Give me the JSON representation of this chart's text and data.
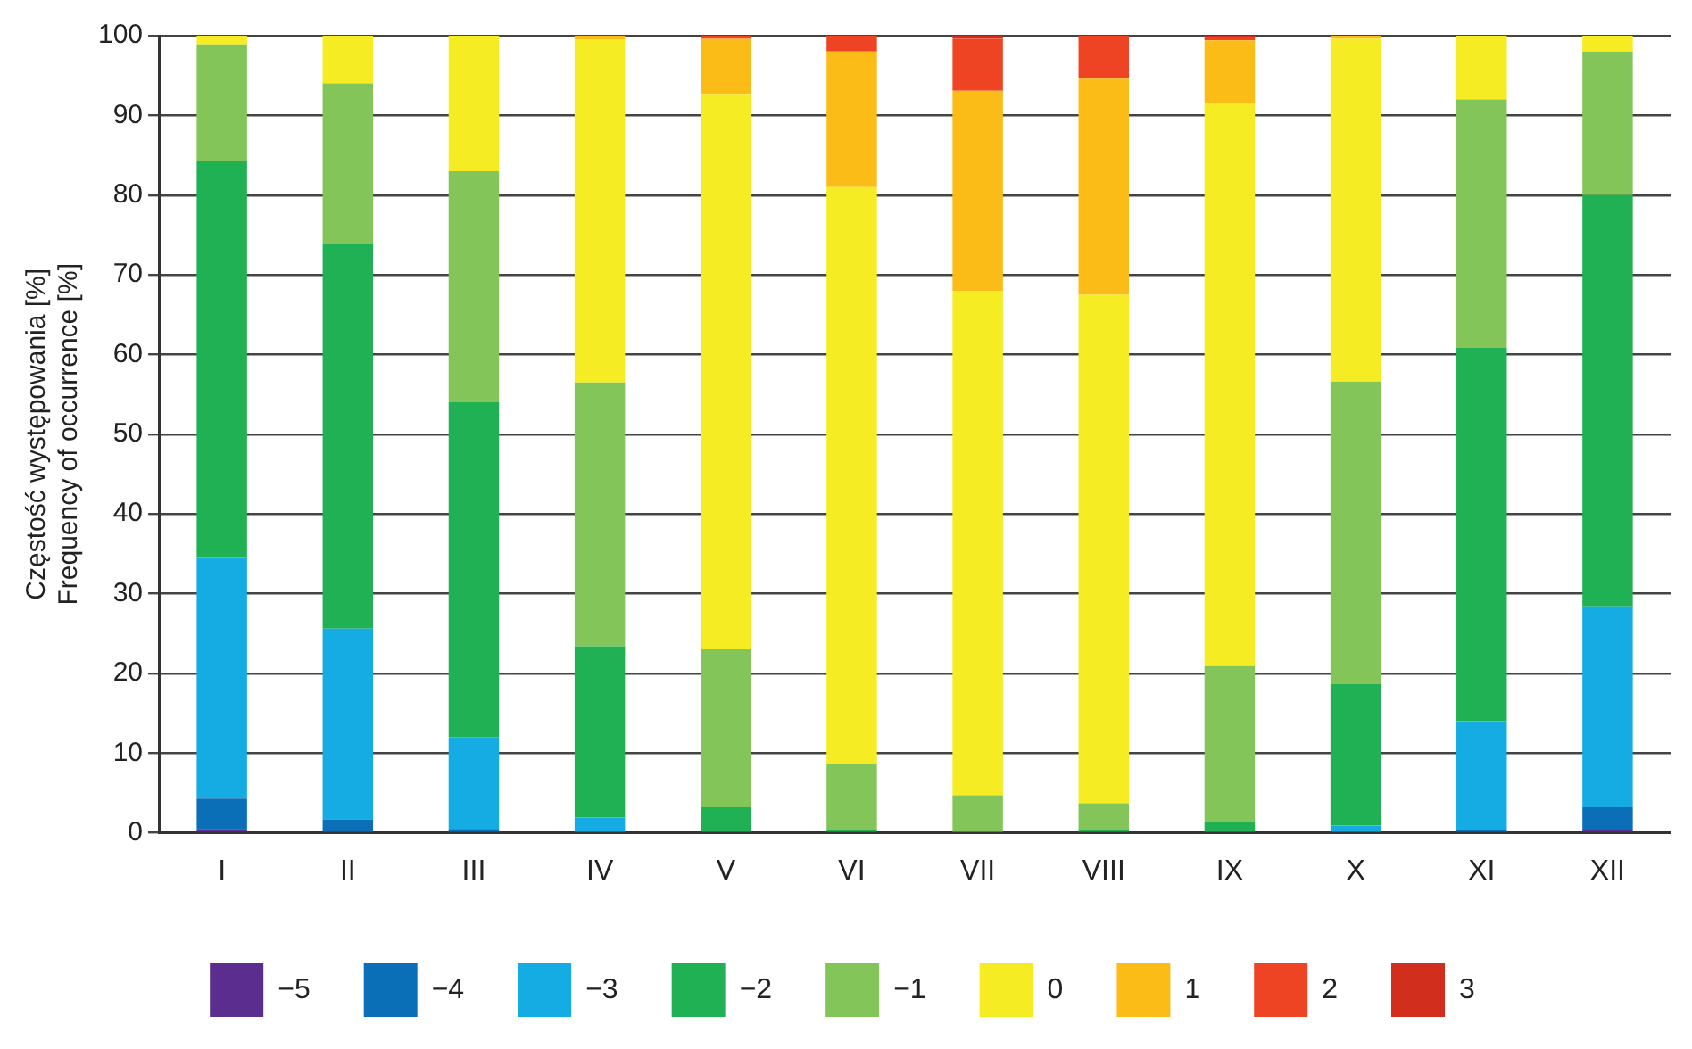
{
  "chart_data": {
    "type": "bar",
    "stacked": true,
    "ylabel": "Częstość występowania [%]\nFrequency of occurrence [%]",
    "categories": [
      "I",
      "II",
      "III",
      "IV",
      "V",
      "VI",
      "VII",
      "VIII",
      "IX",
      "X",
      "XI",
      "XII"
    ],
    "series": [
      {
        "name": "−5",
        "color": "#5b2d8e",
        "values": [
          0.5,
          0,
          0,
          0,
          0,
          0,
          0,
          0,
          0,
          0,
          0,
          0.4
        ]
      },
      {
        "name": "−4",
        "color": "#0b6fb8",
        "values": [
          3.8,
          1.7,
          0.5,
          0,
          0,
          0,
          0,
          0,
          0,
          0,
          0.4,
          2.8
        ]
      },
      {
        "name": "−3",
        "color": "#14ace2",
        "values": [
          30.3,
          23.9,
          11.5,
          1.9,
          0,
          0,
          0,
          0,
          0,
          0.9,
          13.6,
          25.2
        ]
      },
      {
        "name": "−2",
        "color": "#20b155",
        "values": [
          49.7,
          48.2,
          42,
          21.5,
          3.2,
          0.4,
          0,
          0.4,
          1.3,
          17.8,
          46.9,
          51.6
        ]
      },
      {
        "name": "−1",
        "color": "#84c55a",
        "values": [
          14.6,
          20.2,
          29,
          33.1,
          19.8,
          8.2,
          4.7,
          3.3,
          19.6,
          37.9,
          31.1,
          18
        ]
      },
      {
        "name": "0",
        "color": "#f6ec23",
        "values": [
          1.1,
          6,
          17,
          43,
          69.7,
          72.4,
          63.3,
          63.8,
          70.7,
          43,
          8,
          2
        ]
      },
      {
        "name": "1",
        "color": "#fbbc18",
        "values": [
          0,
          0,
          0,
          0.5,
          6.9,
          17,
          25.1,
          27.1,
          7.8,
          0.4,
          0,
          0
        ]
      },
      {
        "name": "2",
        "color": "#ef4423",
        "values": [
          0,
          0,
          0,
          0,
          0.4,
          2,
          6.5,
          5.4,
          0.4,
          0,
          0,
          0
        ]
      },
      {
        "name": "3",
        "color": "#d12e1e",
        "values": [
          0,
          0,
          0,
          0,
          0,
          0,
          0.4,
          0,
          0.2,
          0,
          0,
          0
        ]
      }
    ],
    "ylim": [
      0,
      100
    ],
    "yticks": [
      0,
      10,
      20,
      30,
      40,
      50,
      60,
      70,
      80,
      90,
      100
    ],
    "grid": "y",
    "legend": "bottom"
  }
}
